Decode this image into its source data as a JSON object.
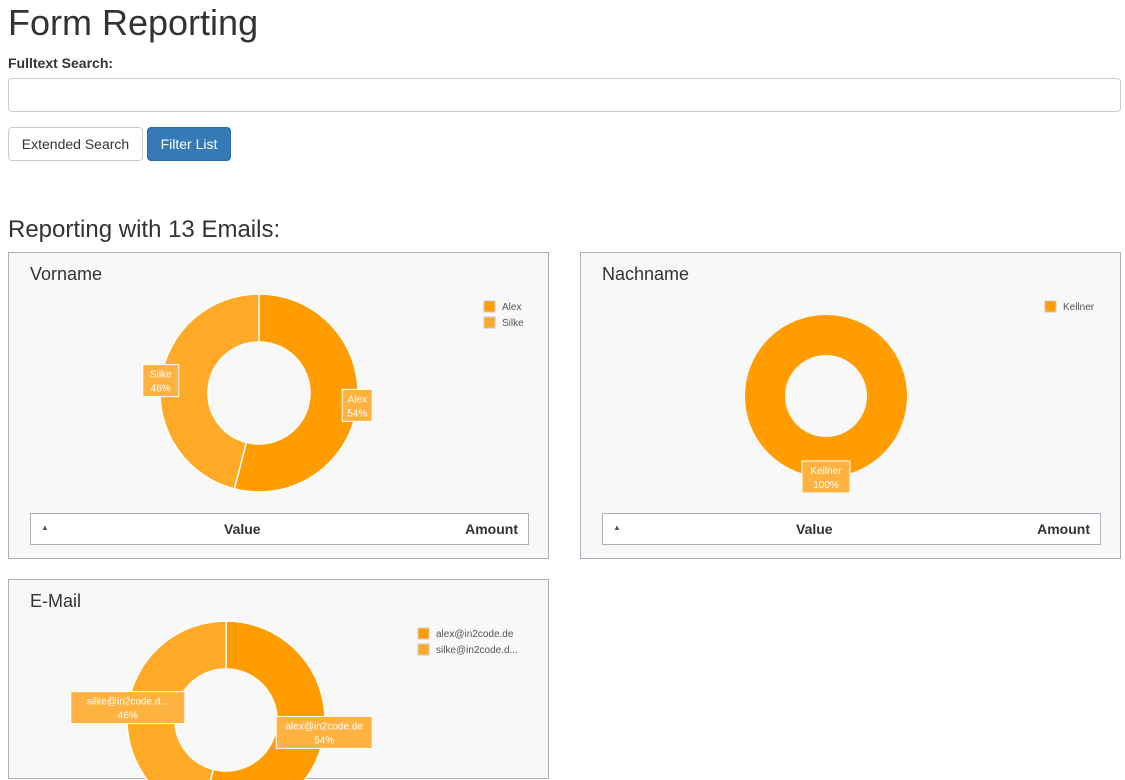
{
  "page": {
    "title": "Form Reporting",
    "search_label": "Fulltext Search:",
    "search_value": "",
    "search_placeholder": "",
    "extended_search": "Extended Search",
    "filter_list": "Filter List",
    "reporting_title": "Reporting with 13 Emails:"
  },
  "table": {
    "sort_icon": "sort-asc-icon",
    "value_header": "Value",
    "amount_header": "Amount"
  },
  "colors": {
    "slice1": "#ff9c00",
    "slice2": "#ffaa26",
    "button_primary": "#337ab7"
  },
  "chart_data": [
    {
      "type": "pie",
      "donut": true,
      "title": "Vorname",
      "categories": [
        "Alex",
        "Silke"
      ],
      "values": [
        54,
        46
      ],
      "labels": [
        "Alex",
        "Silke"
      ],
      "legend": "top-right"
    },
    {
      "type": "pie",
      "donut": true,
      "title": "Nachname",
      "categories": [
        "Kellner"
      ],
      "values": [
        100
      ],
      "labels": [
        "Kellner"
      ],
      "legend": "top-right"
    },
    {
      "type": "pie",
      "donut": true,
      "title": "E-Mail",
      "categories": [
        "alex@in2code.de",
        "silke@in2code.d..."
      ],
      "values": [
        54,
        46
      ],
      "labels": [
        "alex@in2code.de",
        "silke@in2code.d..."
      ],
      "legend": "top-right"
    }
  ]
}
